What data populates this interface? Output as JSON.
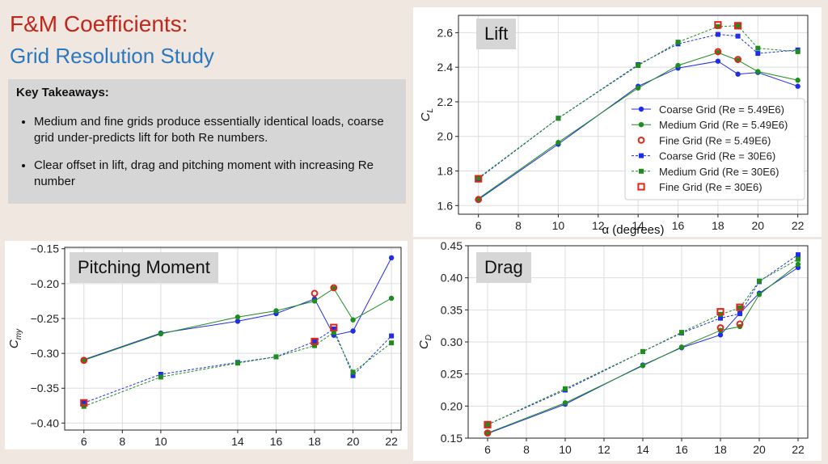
{
  "header": {
    "title": "F&M Coefficients:",
    "subtitle": "Grid Resolution Study"
  },
  "takeaways": {
    "heading": "Key Takeaways:",
    "bullets": [
      "Medium and fine grids produce essentially identical loads, coarse grid under-predicts lift for both Re numbers.",
      "Clear offset in lift, drag and pitching moment with increasing Re number"
    ]
  },
  "colors": {
    "coarse": "#1f2ee6",
    "medium": "#1e8c1e",
    "fine": "#e0261c",
    "title_red": "#c0281c",
    "title_blue": "#2a78c2"
  },
  "chart_data": [
    {
      "id": "lift",
      "type": "line",
      "panel_label": "Lift",
      "xlabel": "α (degrees)",
      "ylabel": "C_L",
      "xlim": [
        5,
        22.5
      ],
      "ylim": [
        1.55,
        2.7
      ],
      "xticks": [
        6,
        8,
        10,
        12,
        14,
        16,
        18,
        20,
        22
      ],
      "yticks": [
        1.6,
        1.8,
        2.0,
        2.2,
        2.4,
        2.6
      ],
      "tick_decimals": 1,
      "grid": true,
      "legend": "center-right",
      "series": [
        {
          "name": "Coarse Grid (Re = 5.49E6)",
          "x": [
            6,
            10,
            14,
            16,
            18,
            19,
            20,
            22
          ],
          "y": [
            1.635,
            1.955,
            2.29,
            2.395,
            2.435,
            2.36,
            2.37,
            2.29
          ]
        },
        {
          "name": "Medium Grid (Re = 5.49E6)",
          "x": [
            6,
            10,
            14,
            16,
            18,
            19,
            20,
            22
          ],
          "y": [
            1.64,
            1.965,
            2.28,
            2.41,
            2.485,
            2.44,
            2.375,
            2.325
          ]
        },
        {
          "name": "Fine Grid (Re = 5.49E6)",
          "x": [
            6,
            18,
            19
          ],
          "y": [
            1.635,
            2.49,
            2.445
          ]
        },
        {
          "name": "Coarse Grid (Re = 30E6)",
          "x": [
            6,
            10,
            14,
            16,
            18,
            19,
            20,
            22
          ],
          "y": [
            1.755,
            2.105,
            2.415,
            2.535,
            2.59,
            2.58,
            2.48,
            2.5
          ]
        },
        {
          "name": "Medium Grid (Re = 30E6)",
          "x": [
            6,
            10,
            14,
            16,
            18,
            19,
            20,
            22
          ],
          "y": [
            1.76,
            2.105,
            2.41,
            2.545,
            2.635,
            2.64,
            2.51,
            2.49
          ]
        },
        {
          "name": "Fine Grid (Re = 30E6)",
          "x": [
            6,
            18,
            19
          ],
          "y": [
            1.755,
            2.645,
            2.64
          ]
        }
      ]
    },
    {
      "id": "pitch",
      "type": "line",
      "panel_label": "Pitching Moment",
      "xlabel": "",
      "ylabel": "C_my",
      "xlim": [
        5,
        22.5
      ],
      "ylim": [
        -0.41,
        -0.148
      ],
      "xticks": [
        6,
        8,
        10,
        14,
        16,
        18,
        20,
        22
      ],
      "yticks": [
        -0.4,
        -0.35,
        -0.3,
        -0.25,
        -0.2,
        -0.15
      ],
      "tick_decimals": 2,
      "grid": true,
      "legend": "none",
      "series": [
        {
          "name": "Coarse Grid (Re = 5.49E6)",
          "x": [
            6,
            10,
            14,
            16,
            18,
            19,
            20,
            22
          ],
          "y": [
            -0.309,
            -0.271,
            -0.254,
            -0.243,
            -0.222,
            -0.274,
            -0.268,
            -0.163
          ]
        },
        {
          "name": "Medium Grid (Re = 5.49E6)",
          "x": [
            6,
            10,
            14,
            16,
            18,
            19,
            20,
            22
          ],
          "y": [
            -0.31,
            -0.272,
            -0.248,
            -0.239,
            -0.225,
            -0.207,
            -0.252,
            -0.221
          ]
        },
        {
          "name": "Fine Grid (Re = 5.49E6)",
          "x": [
            6,
            18,
            19
          ],
          "y": [
            -0.31,
            -0.214,
            -0.206
          ]
        },
        {
          "name": "Coarse Grid (Re = 30E6)",
          "x": [
            6,
            10,
            14,
            16,
            18,
            19,
            20,
            22
          ],
          "y": [
            -0.371,
            -0.33,
            -0.313,
            -0.305,
            -0.283,
            -0.265,
            -0.332,
            -0.275
          ]
        },
        {
          "name": "Medium Grid (Re = 30E6)",
          "x": [
            6,
            10,
            14,
            16,
            18,
            19,
            20,
            22
          ],
          "y": [
            -0.376,
            -0.334,
            -0.314,
            -0.305,
            -0.289,
            -0.27,
            -0.327,
            -0.285
          ]
        },
        {
          "name": "Fine Grid (Re = 30E6)",
          "x": [
            6,
            18,
            19
          ],
          "y": [
            -0.371,
            -0.283,
            -0.263
          ]
        }
      ]
    },
    {
      "id": "drag",
      "type": "line",
      "panel_label": "Drag",
      "xlabel": "",
      "ylabel": "C_D",
      "xlim": [
        5,
        22.5
      ],
      "ylim": [
        0.15,
        0.45
      ],
      "xticks": [
        6,
        8,
        10,
        12,
        14,
        16,
        18,
        20,
        22
      ],
      "yticks": [
        0.15,
        0.2,
        0.25,
        0.3,
        0.35,
        0.4,
        0.45
      ],
      "tick_decimals": 2,
      "grid": true,
      "legend": "none",
      "series": [
        {
          "name": "Coarse Grid (Re = 5.49E6)",
          "x": [
            6,
            10,
            14,
            16,
            18,
            19,
            20,
            22
          ],
          "y": [
            0.157,
            0.203,
            0.264,
            0.291,
            0.311,
            0.345,
            0.376,
            0.416
          ]
        },
        {
          "name": "Medium Grid (Re = 5.49E6)",
          "x": [
            6,
            10,
            14,
            16,
            18,
            19,
            20,
            22
          ],
          "y": [
            0.158,
            0.205,
            0.263,
            0.292,
            0.318,
            0.324,
            0.374,
            0.421
          ]
        },
        {
          "name": "Fine Grid (Re = 5.49E6)",
          "x": [
            6,
            18,
            19
          ],
          "y": [
            0.158,
            0.322,
            0.328
          ]
        },
        {
          "name": "Coarse Grid (Re = 30E6)",
          "x": [
            6,
            10,
            14,
            16,
            18,
            19,
            20,
            22
          ],
          "y": [
            0.171,
            0.225,
            0.285,
            0.314,
            0.337,
            0.344,
            0.394,
            0.436
          ]
        },
        {
          "name": "Medium Grid (Re = 30E6)",
          "x": [
            6,
            10,
            14,
            16,
            18,
            19,
            20,
            22
          ],
          "y": [
            0.171,
            0.227,
            0.285,
            0.315,
            0.343,
            0.353,
            0.395,
            0.429
          ]
        },
        {
          "name": "Fine Grid (Re = 30E6)",
          "x": [
            6,
            18,
            19
          ],
          "y": [
            0.171,
            0.347,
            0.354
          ]
        }
      ]
    }
  ]
}
